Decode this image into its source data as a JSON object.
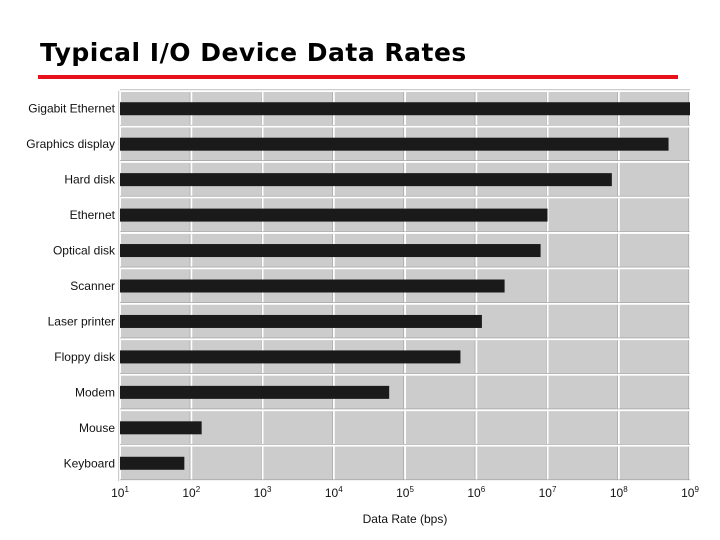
{
  "slide": {
    "title": "Typical I/O Device Data Rates",
    "rule_color": "#e8101a"
  },
  "chart_data": {
    "type": "bar",
    "orientation": "horizontal",
    "title": "",
    "xlabel": "Data Rate (bps)",
    "ylabel": "",
    "xscale": "log10",
    "xlim": [
      10,
      1000000000
    ],
    "xticks": [
      {
        "value": 10,
        "base": "10",
        "exp": "1"
      },
      {
        "value": 100,
        "base": "10",
        "exp": "2"
      },
      {
        "value": 1000,
        "base": "10",
        "exp": "3"
      },
      {
        "value": 10000,
        "base": "10",
        "exp": "4"
      },
      {
        "value": 100000,
        "base": "10",
        "exp": "5"
      },
      {
        "value": 1000000,
        "base": "10",
        "exp": "6"
      },
      {
        "value": 10000000,
        "base": "10",
        "exp": "7"
      },
      {
        "value": 100000000,
        "base": "10",
        "exp": "8"
      },
      {
        "value": 1000000000,
        "base": "10",
        "exp": "9"
      }
    ],
    "categories": [
      "Gigabit Ethernet",
      "Graphics display",
      "Hard disk",
      "Ethernet",
      "Optical disk",
      "Scanner",
      "Laser printer",
      "Floppy disk",
      "Modem",
      "Mouse",
      "Keyboard"
    ],
    "values": [
      1000000000,
      500000000,
      80000000,
      10000000,
      8000000,
      2500000,
      1200000,
      600000,
      60000,
      140,
      80
    ],
    "grid": true,
    "background_color": "#cccccc",
    "bar_color": "#1a1a1a",
    "grid_color": "#ffffff"
  }
}
